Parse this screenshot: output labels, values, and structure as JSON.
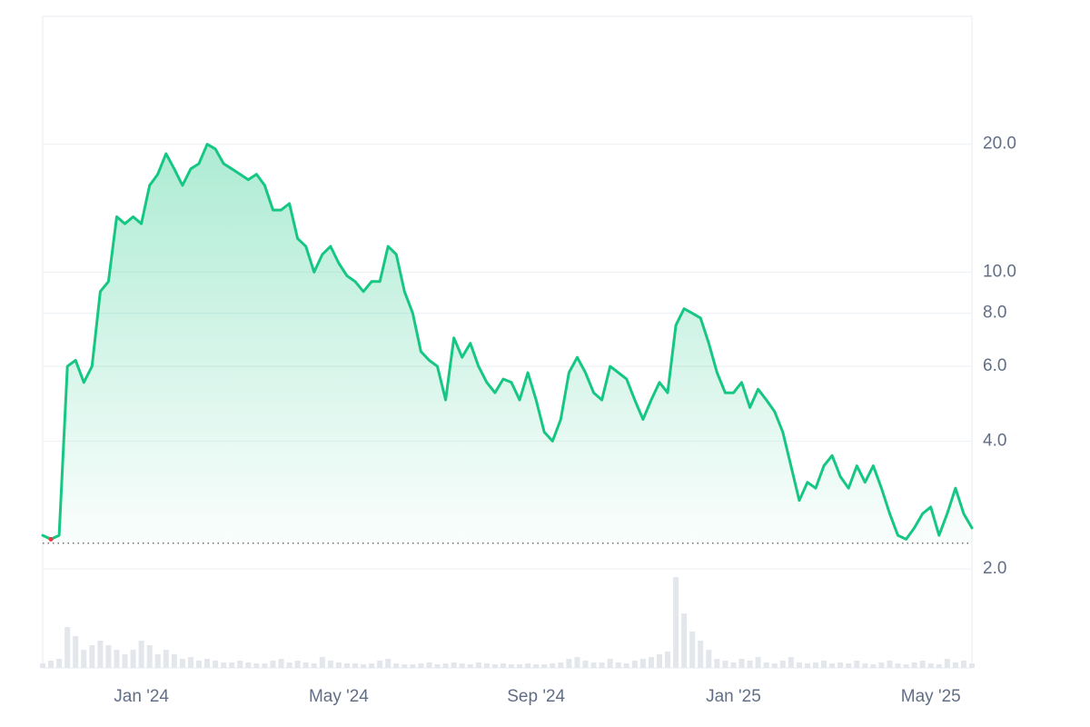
{
  "chart_data": {
    "type": "line",
    "log_scale": true,
    "grid": true,
    "color": "#16c784",
    "volume_color": "#e3e6ea",
    "reference_value": 2.3,
    "min_marker_color": "#ea3943",
    "ylim": [
      1.17,
      40
    ],
    "yticks": [
      {
        "value": 2,
        "label": "2.0"
      },
      {
        "value": 4,
        "label": "4.0"
      },
      {
        "value": 6,
        "label": "6.0"
      },
      {
        "value": 8,
        "label": "8.0"
      },
      {
        "value": 10,
        "label": "10.0"
      },
      {
        "value": 20,
        "label": "20.0"
      }
    ],
    "categories": [
      null,
      null,
      null,
      null,
      null,
      null,
      null,
      null,
      null,
      null,
      null,
      null,
      "Jan '24",
      null,
      null,
      null,
      null,
      null,
      null,
      null,
      null,
      null,
      null,
      null,
      null,
      null,
      null,
      null,
      null,
      null,
      null,
      null,
      null,
      null,
      null,
      null,
      "May '24",
      null,
      null,
      null,
      null,
      null,
      null,
      null,
      null,
      null,
      null,
      null,
      null,
      null,
      null,
      null,
      null,
      null,
      null,
      null,
      null,
      null,
      null,
      null,
      "Sep '24",
      null,
      null,
      null,
      null,
      null,
      null,
      null,
      null,
      null,
      null,
      null,
      null,
      null,
      null,
      null,
      null,
      null,
      null,
      null,
      null,
      null,
      null,
      null,
      "Jan '25",
      null,
      null,
      null,
      null,
      null,
      null,
      null,
      null,
      null,
      null,
      null,
      null,
      null,
      null,
      null,
      null,
      null,
      null,
      null,
      null,
      null,
      null,
      null,
      "May '25",
      null,
      null,
      null,
      null,
      null
    ],
    "values": [
      2.4,
      2.35,
      2.4,
      6.0,
      6.2,
      5.5,
      6.0,
      9.0,
      9.5,
      13.5,
      13,
      13.5,
      13,
      16,
      17,
      19,
      17.5,
      16,
      17.5,
      18,
      20,
      19.5,
      18,
      17.5,
      17,
      16.5,
      17,
      16,
      14,
      14,
      14.5,
      12,
      11.5,
      10,
      11,
      11.5,
      10.5,
      9.8,
      9.5,
      9.0,
      9.5,
      9.5,
      11.5,
      11,
      9,
      8,
      6.5,
      6.2,
      6.0,
      5.0,
      7.0,
      6.3,
      6.8,
      6.0,
      5.5,
      5.2,
      5.6,
      5.5,
      5.0,
      5.8,
      5.0,
      4.2,
      4.0,
      4.5,
      5.8,
      6.3,
      5.8,
      5.2,
      5.0,
      6.0,
      5.8,
      5.6,
      5.0,
      4.5,
      5.0,
      5.5,
      5.2,
      7.5,
      8.2,
      8.0,
      7.8,
      6.8,
      5.8,
      5.2,
      5.2,
      5.5,
      4.8,
      5.3,
      5.0,
      4.7,
      4.2,
      3.5,
      2.9,
      3.2,
      3.1,
      3.5,
      3.7,
      3.3,
      3.1,
      3.5,
      3.2,
      3.5,
      3.1,
      2.7,
      2.4,
      2.35,
      2.5,
      2.7,
      2.8,
      2.4,
      2.7,
      3.1,
      2.7,
      2.5
    ],
    "volume": [
      5,
      8,
      10,
      45,
      35,
      20,
      25,
      30,
      25,
      20,
      15,
      20,
      30,
      25,
      15,
      20,
      15,
      10,
      12,
      8,
      10,
      8,
      6,
      6,
      8,
      6,
      5,
      5,
      8,
      10,
      6,
      8,
      6,
      5,
      12,
      8,
      6,
      5,
      5,
      4,
      5,
      8,
      10,
      5,
      4,
      4,
      5,
      6,
      4,
      5,
      6,
      5,
      4,
      6,
      5,
      4,
      5,
      4,
      4,
      5,
      4,
      4,
      5,
      6,
      10,
      12,
      8,
      6,
      6,
      10,
      6,
      5,
      8,
      10,
      12,
      15,
      18,
      100,
      60,
      40,
      30,
      20,
      10,
      8,
      6,
      10,
      8,
      12,
      6,
      5,
      8,
      12,
      6,
      5,
      6,
      8,
      5,
      6,
      5,
      8,
      5,
      4,
      6,
      8,
      5,
      4,
      6,
      8,
      5,
      4,
      10,
      6,
      8,
      5
    ]
  }
}
